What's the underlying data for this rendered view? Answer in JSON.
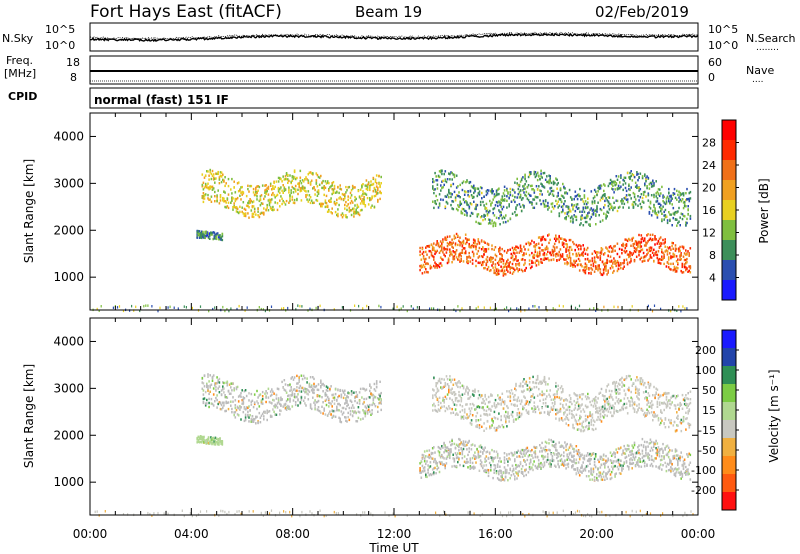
{
  "header": {
    "title": "Fort Hays East (fitACF)",
    "beam": "Beam 19",
    "date": "02/Feb/2019"
  },
  "strip_labels": {
    "nsky": "N.Sky",
    "nsearch": "N.Search",
    "nsearch_dots": "........",
    "freq_line1": "Freq.",
    "freq_line2": "[MHz]",
    "nave": "Nave",
    "nave_dots": "....",
    "cpid": "CPID",
    "mode": "normal (fast) 151 IF",
    "noise_ticks_left": [
      "10^5",
      "10^0"
    ],
    "noise_ticks_right": [
      "10^5",
      "10^0"
    ],
    "freq_ticks_left": [
      "18",
      "8"
    ],
    "freq_ticks_right": [
      "60",
      "0"
    ]
  },
  "colors": {
    "power_scale": [
      "#1a1aff",
      "#2b4fb0",
      "#3d8f5a",
      "#7fbf3f",
      "#e8d020",
      "#f0a020",
      "#f07018",
      "#ff2a00",
      "#ff0000"
    ],
    "velocity_scale": [
      "#ff1010",
      "#ff5a10",
      "#ff8c1a",
      "#f0b040",
      "#c8c8c0",
      "#b0d890",
      "#7ccc44",
      "#2f8f55",
      "#2244aa",
      "#1a1aff"
    ],
    "ground_scatter": "#bcbcbc"
  },
  "chart_data": [
    {
      "type": "heatmap",
      "name": "power",
      "ylabel": "Slant Range [km]",
      "yticks": [
        "1000",
        "2000",
        "3000",
        "4000"
      ],
      "ylim": [
        300,
        4500
      ],
      "xticks": [
        "00:00",
        "04:00",
        "08:00",
        "12:00",
        "16:00",
        "20:00",
        "00:00"
      ],
      "xlim_hours": [
        0,
        24
      ],
      "colorbar_label": "Power [dB]",
      "colorbar_ticks": [
        "4",
        "8",
        "12",
        "16",
        "20",
        "24",
        "28"
      ],
      "echo_regions": [
        {
          "t_start": 4.4,
          "t_end": 11.5,
          "range_center": 2800,
          "range_width": 700,
          "value": 16
        },
        {
          "t_start": 4.2,
          "t_end": 5.2,
          "range_center": 1900,
          "range_width": 150,
          "value": 8
        },
        {
          "t_start": 13.0,
          "t_end": 23.7,
          "range_center": 1500,
          "range_width": 600,
          "value": 24
        },
        {
          "t_start": 13.5,
          "t_end": 23.7,
          "range_center": 2700,
          "range_width": 800,
          "value": 10
        }
      ]
    },
    {
      "type": "heatmap",
      "name": "velocity",
      "ylabel": "Slant Range [km]",
      "yticks": [
        "1000",
        "2000",
        "3000",
        "4000"
      ],
      "ylim": [
        300,
        4500
      ],
      "xticks": [
        "00:00",
        "04:00",
        "08:00",
        "12:00",
        "16:00",
        "20:00",
        "00:00"
      ],
      "xlabel": "Time UT",
      "xlim_hours": [
        0,
        24
      ],
      "colorbar_label": "Velocity [m s⁻¹]",
      "colorbar_ticks": [
        "200",
        "100",
        "50",
        "15",
        "-15",
        "-50",
        "-100",
        "-200"
      ],
      "echo_regions": [
        {
          "t_start": 4.4,
          "t_end": 11.5,
          "range_center": 2800,
          "range_width": 700,
          "value": 0
        },
        {
          "t_start": 4.2,
          "t_end": 5.2,
          "range_center": 1900,
          "range_width": 150,
          "value": 40
        },
        {
          "t_start": 13.0,
          "t_end": 23.7,
          "range_center": 1500,
          "range_width": 600,
          "value": 0
        },
        {
          "t_start": 13.5,
          "t_end": 23.7,
          "range_center": 2700,
          "range_width": 800,
          "value": -30
        }
      ]
    }
  ]
}
